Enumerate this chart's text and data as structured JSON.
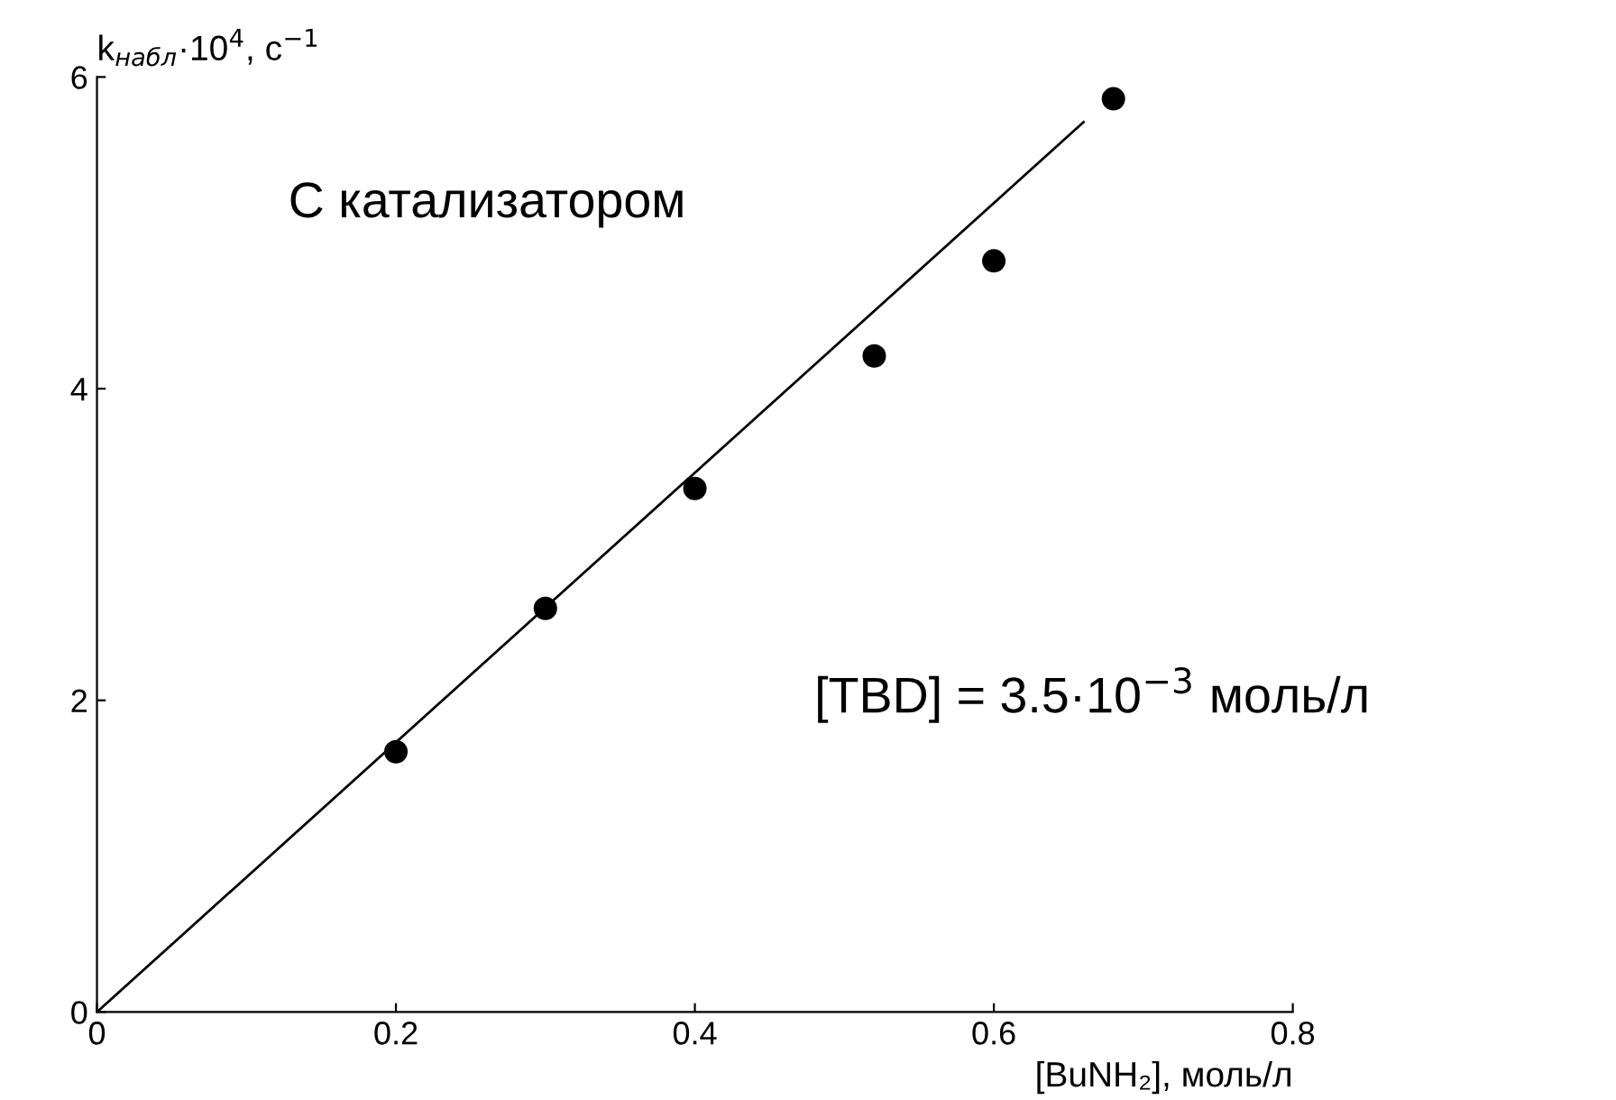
{
  "chart_data": {
    "type": "scatter",
    "xlabel": "[BuNH₂], моль/л",
    "ylabel": "k$_{набл}$·10$^{4}$, с$^{−1}$",
    "annotations": [
      "С катализатором",
      "[TBD] = 3.5·10$^{−3}$ моль/л"
    ],
    "series": [
      {
        "color": "#000000",
        "marker": "circle",
        "x": [
          0.2,
          0.3,
          0.4,
          0.52,
          0.6,
          0.68
        ],
        "values": [
          1.67,
          2.59,
          3.36,
          4.21,
          4.82,
          5.86
        ]
      },
      {
        "type": "line",
        "color": "#000000",
        "marker": "none",
        "line_style": "solid",
        "x": [
          0,
          0.66
        ],
        "values": [
          0,
          5.71
        ]
      }
    ],
    "xlim": [
      0,
      0.8
    ],
    "ylim": [
      0,
      6
    ],
    "xticks": [
      0,
      0.2,
      0.4,
      0.6,
      0.8
    ],
    "yticks": [
      0,
      2,
      4,
      6
    ],
    "grid": false,
    "legend": false
  }
}
